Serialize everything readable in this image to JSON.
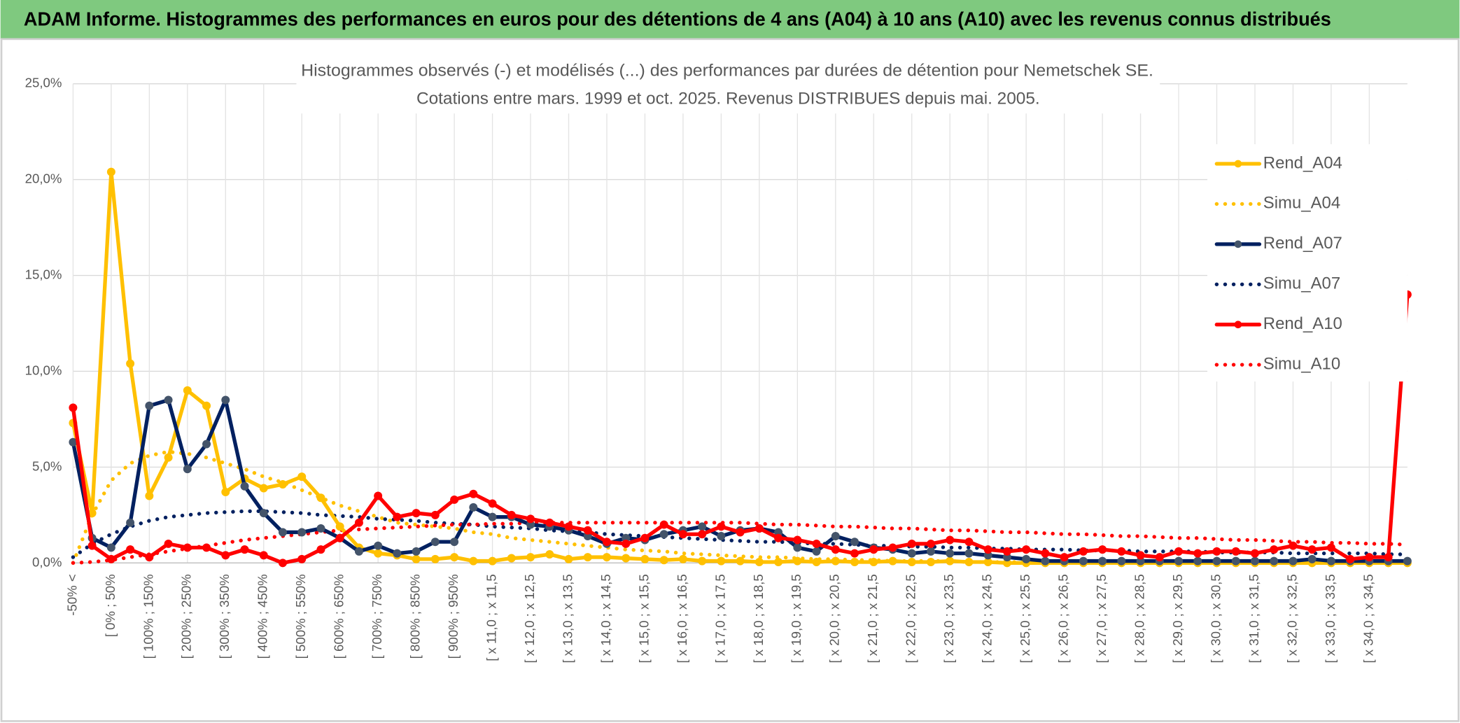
{
  "banner": "ADAM Informe. Histogrammes des performances en euros pour des détentions de 4 ans (A04) à 10 ans (A10) avec les revenus connus distribués",
  "chart_data": {
    "type": "line",
    "title": "Histogrammes observés (-) et modélisés (...) des performances par durées de détention pour Nemetschek SE.",
    "subtitle": "Cotations entre mars. 1999 et oct. 2025. Revenus DISTRIBUES depuis mai. 2005.",
    "categories": [
      "-50% <",
      null,
      "[ 0% ; 50%",
      null,
      "[ 100% ; 150%",
      null,
      "[ 200% ; 250%",
      null,
      "[ 300% ; 350%",
      null,
      "[ 400% ; 450%",
      null,
      "[ 500% ; 550%",
      null,
      "[ 600% ; 650%",
      null,
      "[ 700% ; 750%",
      null,
      "[ 800% ; 850%",
      null,
      "[ 900% ; 950%",
      null,
      "[ x 11,0 ; x 11,5",
      null,
      "[ x 12,0 ; x 12,5",
      null,
      "[ x 13,0 ; x 13,5",
      null,
      "[ x 14,0 ; x 14,5",
      null,
      "[ x 15,0 ; x 15,5",
      null,
      "[ x 16,0 ; x 16,5",
      null,
      "[ x 17,0 ; x 17,5",
      null,
      "[ x 18,0 ; x 18,5",
      null,
      "[ x 19,0 ; x 19,5",
      null,
      "[ x 20,0 ; x 20,5",
      null,
      "[ x 21,0 ; x 21,5",
      null,
      "[ x 22,0 ; x 22,5",
      null,
      "[ x 23,0 ; x 23,5",
      null,
      "[ x 24,0 ; x 24,5",
      null,
      "[ x 25,0 ; x 25,5",
      null,
      "[ x 26,0 ; x 26,5",
      null,
      "[ x 27,0 ; x 27,5",
      null,
      "[ x 28,0 ; x 28,5",
      null,
      "[ x 29,0 ; x 29,5",
      null,
      "[ x 30,0 ; x 30,5",
      null,
      "[ x 31,0 ; x 31,5",
      null,
      "[ x 32,0 ; x 32,5",
      null,
      "[ x 33,0 ; x 33,5",
      null,
      "[ x 34,0 ; x 34,5",
      null,
      null
    ],
    "series": [
      {
        "name": "Rend_A04",
        "color": "#ffc000",
        "style": "solid",
        "markers": true,
        "marker_color": "#ffc000",
        "values": [
          7.3,
          2.6,
          20.4,
          10.4,
          3.5,
          5.5,
          9.0,
          8.2,
          3.7,
          4.4,
          3.9,
          4.1,
          4.5,
          3.4,
          1.9,
          0.8,
          0.5,
          0.4,
          0.2,
          0.2,
          0.3,
          0.1,
          0.1,
          0.25,
          0.3,
          0.45,
          0.2,
          0.3,
          0.3,
          0.25,
          0.2,
          0.15,
          0.2,
          0.1,
          0.1,
          0.1,
          0.05,
          0.05,
          0.1,
          0.05,
          0.1,
          0.05,
          0.05,
          0.1,
          0.05,
          0.05,
          0.1,
          0.05,
          0.05,
          0,
          0,
          0,
          0,
          0,
          0,
          0,
          0,
          0,
          0,
          0,
          0,
          0,
          0,
          0,
          0,
          0,
          0,
          0,
          0,
          0,
          0
        ]
      },
      {
        "name": "Simu_A04",
        "color": "#ffc000",
        "style": "dotted",
        "markers": false,
        "values": [
          0,
          2.5,
          4.3,
          5.2,
          5.6,
          5.8,
          5.7,
          5.5,
          5.2,
          4.9,
          4.5,
          4.2,
          3.8,
          3.4,
          3.0,
          2.7,
          2.4,
          2.1,
          2.0,
          1.9,
          1.8,
          1.6,
          1.5,
          1.3,
          1.2,
          1.1,
          1.0,
          0.9,
          0.8,
          0.7,
          0.65,
          0.6,
          0.5,
          0.45,
          0.4,
          0.35,
          0.3,
          0.3,
          0.25,
          0.2,
          0.2,
          0.15,
          0.15,
          0.1,
          0.1,
          0.1,
          0.1,
          0.05,
          0.05,
          0.05,
          0.05,
          0.05,
          0.05,
          0.05,
          0.05,
          0.05,
          0.05,
          0.05,
          0.05,
          0.05,
          0,
          0,
          0,
          0,
          0,
          0,
          0,
          0,
          0,
          0,
          0
        ]
      },
      {
        "name": "Rend_A07",
        "color": "#002060",
        "style": "solid",
        "markers": true,
        "marker_color": "#44546a",
        "values": [
          6.3,
          1.3,
          0.8,
          2.1,
          8.2,
          8.5,
          4.9,
          6.2,
          8.5,
          4.0,
          2.6,
          1.6,
          1.6,
          1.8,
          1.3,
          0.6,
          0.9,
          0.5,
          0.6,
          1.1,
          1.1,
          2.9,
          2.4,
          2.4,
          2.0,
          1.9,
          1.7,
          1.4,
          1.0,
          1.3,
          1.2,
          1.5,
          1.7,
          1.9,
          1.4,
          1.7,
          1.8,
          1.6,
          0.8,
          0.6,
          1.4,
          1.1,
          0.8,
          0.7,
          0.5,
          0.6,
          0.5,
          0.5,
          0.4,
          0.3,
          0.2,
          0.1,
          0.1,
          0.1,
          0.1,
          0.1,
          0.1,
          0.1,
          0.1,
          0.1,
          0.1,
          0.1,
          0.1,
          0.1,
          0.1,
          0.2,
          0.1,
          0.1,
          0.1,
          0.1,
          0.1
        ]
      },
      {
        "name": "Simu_A07",
        "color": "#002060",
        "style": "dotted",
        "markers": false,
        "values": [
          0.3,
          1.0,
          1.5,
          1.9,
          2.2,
          2.4,
          2.5,
          2.6,
          2.65,
          2.7,
          2.7,
          2.65,
          2.6,
          2.5,
          2.45,
          2.4,
          2.3,
          2.25,
          2.2,
          2.1,
          2.05,
          2.0,
          1.9,
          1.85,
          1.8,
          1.7,
          1.65,
          1.6,
          1.5,
          1.45,
          1.4,
          1.35,
          1.3,
          1.25,
          1.2,
          1.15,
          1.1,
          1.1,
          1.05,
          1.0,
          1.0,
          0.95,
          0.9,
          0.9,
          0.85,
          0.85,
          0.8,
          0.8,
          0.75,
          0.75,
          0.7,
          0.7,
          0.7,
          0.65,
          0.65,
          0.65,
          0.6,
          0.6,
          0.6,
          0.6,
          0.55,
          0.55,
          0.55,
          0.55,
          0.5,
          0.5,
          0.5,
          0.5,
          0.5,
          0.45,
          0.45
        ]
      },
      {
        "name": "Rend_A10",
        "color": "#ff0000",
        "style": "solid",
        "markers": true,
        "marker_color": "#ff0000",
        "values": [
          8.1,
          0.9,
          0.2,
          0.7,
          0.3,
          1.0,
          0.8,
          0.8,
          0.4,
          0.7,
          0.4,
          0.0,
          0.2,
          0.7,
          1.3,
          2.1,
          3.5,
          2.4,
          2.6,
          2.5,
          3.3,
          3.6,
          3.1,
          2.5,
          2.3,
          2.1,
          1.9,
          1.7,
          1.1,
          1.0,
          1.3,
          2.0,
          1.5,
          1.5,
          1.9,
          1.6,
          1.8,
          1.3,
          1.2,
          1.0,
          0.7,
          0.5,
          0.7,
          0.8,
          1.0,
          1.0,
          1.2,
          1.1,
          0.7,
          0.6,
          0.7,
          0.5,
          0.3,
          0.6,
          0.7,
          0.6,
          0.4,
          0.3,
          0.6,
          0.5,
          0.6,
          0.6,
          0.5,
          0.7,
          0.9,
          0.7,
          0.8,
          0.2,
          0.3,
          0.3,
          14
        ]
      },
      {
        "name": "Simu_A10",
        "color": "#ff0000",
        "style": "dotted",
        "markers": false,
        "values": [
          0,
          0.05,
          0.15,
          0.3,
          0.45,
          0.6,
          0.75,
          0.9,
          1.05,
          1.2,
          1.3,
          1.4,
          1.5,
          1.6,
          1.7,
          1.75,
          1.8,
          1.85,
          1.9,
          1.95,
          2.0,
          2.0,
          2.05,
          2.05,
          2.1,
          2.1,
          2.1,
          2.1,
          2.1,
          2.1,
          2.1,
          2.1,
          2.1,
          2.1,
          2.1,
          2.1,
          2.05,
          2.0,
          2.0,
          1.95,
          1.9,
          1.9,
          1.85,
          1.8,
          1.8,
          1.75,
          1.7,
          1.7,
          1.65,
          1.6,
          1.6,
          1.55,
          1.5,
          1.5,
          1.45,
          1.4,
          1.4,
          1.35,
          1.3,
          1.3,
          1.25,
          1.2,
          1.2,
          1.15,
          1.1,
          1.1,
          1.05,
          1.05,
          1.0,
          1.0,
          0.95
        ]
      }
    ],
    "ylim": [
      0,
      25
    ],
    "yticks": [
      {
        "value": 0,
        "label": "0,0%"
      },
      {
        "value": 5,
        "label": "5,0%"
      },
      {
        "value": 10,
        "label": "10,0%"
      },
      {
        "value": 15,
        "label": "15,0%"
      },
      {
        "value": 20,
        "label": "20,0%"
      },
      {
        "value": 25,
        "label": "25,0%"
      }
    ],
    "grid": true,
    "legend": "right"
  }
}
